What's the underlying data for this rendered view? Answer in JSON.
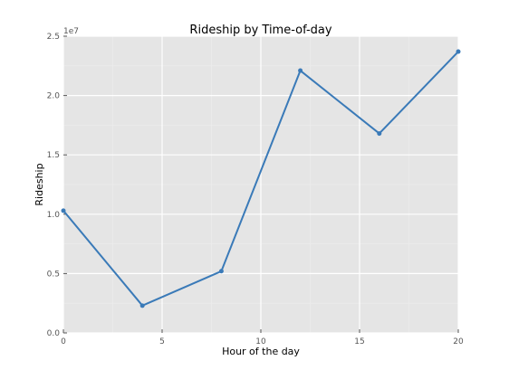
{
  "chart_data": {
    "type": "line",
    "title": "Rideship by Time-of-day",
    "xlabel": "Hour of the day",
    "ylabel": "Rideship",
    "y_offset_label": "1e7",
    "xlim": [
      0,
      20
    ],
    "ylim": [
      0,
      25000000
    ],
    "y_scale_factor": 10000000,
    "grid": true,
    "x_ticks": [
      0,
      5,
      10,
      15,
      20
    ],
    "y_ticks": [
      0,
      5000000,
      10000000,
      15000000,
      20000000,
      25000000
    ],
    "x_tick_labels": [
      "0",
      "5",
      "10",
      "15",
      "20"
    ],
    "y_tick_labels": [
      "0.0",
      "0.5",
      "1.0",
      "1.5",
      "2.0",
      "2.5"
    ],
    "series": [
      {
        "x": [
          0,
          4,
          8,
          12,
          16,
          20
        ],
        "values": [
          10300000,
          2300000,
          5200000,
          22100000,
          16800000,
          23700000
        ],
        "color": "#3a7ab8"
      }
    ]
  },
  "colors": {
    "plot_background": "#e5e5e5",
    "grid_major": "#ffffff",
    "grid_minor": "#ececec",
    "line": "#3a7ab8"
  }
}
